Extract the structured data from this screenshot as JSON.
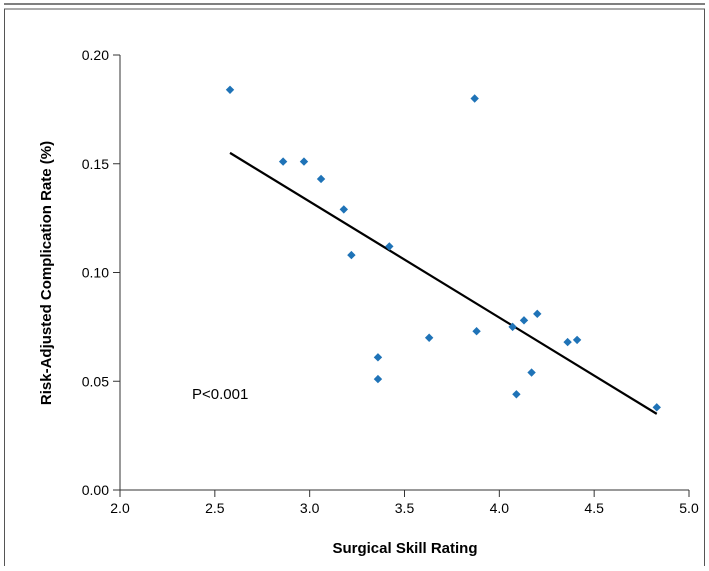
{
  "chart_data": {
    "type": "scatter",
    "xlabel": "Surgical Skill Rating",
    "ylabel": "Risk-Adjusted Complication Rate (%)",
    "xlim": [
      2.0,
      5.0
    ],
    "ylim": [
      0.0,
      0.2
    ],
    "x_ticks": [
      "2.0",
      "2.5",
      "3.0",
      "3.5",
      "4.0",
      "4.5",
      "5.0"
    ],
    "y_ticks": [
      "0.00",
      "0.05",
      "0.10",
      "0.15",
      "0.20"
    ],
    "annotation": "P<0.001",
    "points": [
      {
        "x": 2.58,
        "y": 0.184
      },
      {
        "x": 2.86,
        "y": 0.151
      },
      {
        "x": 2.97,
        "y": 0.151
      },
      {
        "x": 3.06,
        "y": 0.143
      },
      {
        "x": 3.18,
        "y": 0.129
      },
      {
        "x": 3.22,
        "y": 0.108
      },
      {
        "x": 3.36,
        "y": 0.061
      },
      {
        "x": 3.36,
        "y": 0.051
      },
      {
        "x": 3.42,
        "y": 0.112
      },
      {
        "x": 3.63,
        "y": 0.07
      },
      {
        "x": 3.87,
        "y": 0.18
      },
      {
        "x": 3.88,
        "y": 0.073
      },
      {
        "x": 4.07,
        "y": 0.075
      },
      {
        "x": 4.09,
        "y": 0.044
      },
      {
        "x": 4.13,
        "y": 0.078
      },
      {
        "x": 4.17,
        "y": 0.054
      },
      {
        "x": 4.2,
        "y": 0.081
      },
      {
        "x": 4.36,
        "y": 0.068
      },
      {
        "x": 4.41,
        "y": 0.069
      },
      {
        "x": 4.83,
        "y": 0.038
      }
    ],
    "trendline": {
      "x": [
        2.58,
        4.83
      ],
      "y": [
        0.155,
        0.035
      ]
    },
    "colors": {
      "marker": "#1f73b7",
      "line": "#000000",
      "frame": "#444444"
    }
  }
}
